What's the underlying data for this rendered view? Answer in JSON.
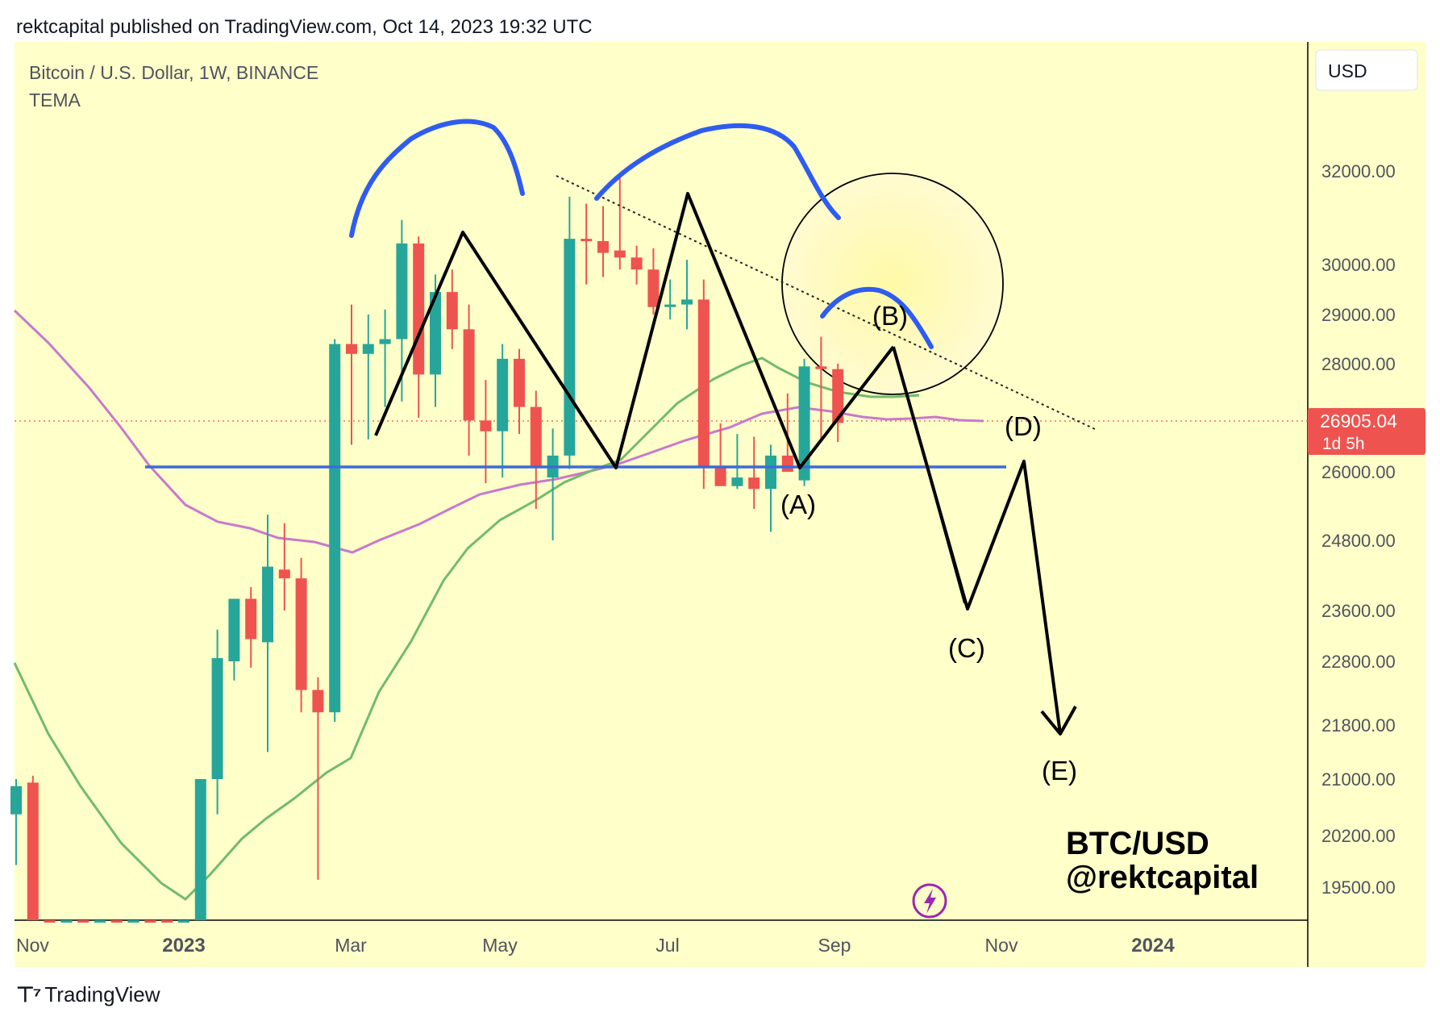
{
  "header": {
    "publish_line": "rektcapital published on TradingView.com, Oct 14, 2023 19:32 UTC"
  },
  "footer": {
    "brand": "TradingView",
    "logo_icon": "tradingview-logo-icon"
  },
  "chart_data": {
    "type": "candlestick",
    "title": "Bitcoin / U.S. Dollar, 1W, BINANCE",
    "subtitle": "TEMA",
    "currency_label": "USD",
    "colors": {
      "up": "#26a69a",
      "down": "#ef5350",
      "background": "#ffffc9",
      "ma_purple": "#c879cc",
      "ma_green": "#72bb6c",
      "support": "#3c6bd9",
      "arc": "#2f5cf0"
    },
    "y_ticks": [
      "32000.00",
      "30000.00",
      "29000.00",
      "28000.00",
      "26000.00",
      "24800.00",
      "23600.00",
      "22800.00",
      "21800.00",
      "21000.00",
      "20200.00",
      "19500.00"
    ],
    "y_tick_values": [
      32000,
      30000,
      29000,
      28000,
      26000,
      24800,
      23600,
      22800,
      21800,
      21000,
      20200,
      19500
    ],
    "x_ticks": [
      {
        "label": "Nov",
        "bold": false
      },
      {
        "label": "2023",
        "bold": true
      },
      {
        "label": "Mar",
        "bold": false
      },
      {
        "label": "May",
        "bold": false
      },
      {
        "label": "Jul",
        "bold": false
      },
      {
        "label": "Sep",
        "bold": false
      },
      {
        "label": "Nov",
        "bold": false
      },
      {
        "label": "2024",
        "bold": true
      }
    ],
    "last_price": {
      "value": "26905.04",
      "countdown": "1d 5h"
    },
    "candles": [
      {
        "o": 20500,
        "h": 21000,
        "l": 19800,
        "c": 20900
      },
      {
        "o": 20950,
        "h": 21050,
        "l": 16000,
        "c": 16200
      },
      {
        "o": 16600,
        "h": 16800,
        "l": 16100,
        "c": 16450
      },
      {
        "o": 16450,
        "h": 16700,
        "l": 16300,
        "c": 16550
      },
      {
        "o": 16550,
        "h": 16950,
        "l": 16150,
        "c": 16400
      },
      {
        "o": 16400,
        "h": 16800,
        "l": 16250,
        "c": 16600
      },
      {
        "o": 16700,
        "h": 16950,
        "l": 16450,
        "c": 16550
      },
      {
        "o": 16550,
        "h": 16900,
        "l": 16300,
        "c": 16850
      },
      {
        "o": 16850,
        "h": 16950,
        "l": 16400,
        "c": 16600
      },
      {
        "o": 16600,
        "h": 16850,
        "l": 16450,
        "c": 16500
      },
      {
        "o": 16500,
        "h": 17100,
        "l": 16400,
        "c": 16650
      },
      {
        "o": 16650,
        "h": 21000,
        "l": 16600,
        "c": 21000
      },
      {
        "o": 21000,
        "h": 23300,
        "l": 20500,
        "c": 22850
      },
      {
        "o": 22800,
        "h": 23800,
        "l": 22500,
        "c": 23800
      },
      {
        "o": 23800,
        "h": 24000,
        "l": 22700,
        "c": 23150
      },
      {
        "o": 23100,
        "h": 25250,
        "l": 21400,
        "c": 24350
      },
      {
        "o": 24300,
        "h": 25100,
        "l": 23600,
        "c": 24150
      },
      {
        "o": 24150,
        "h": 24500,
        "l": 22000,
        "c": 22350
      },
      {
        "o": 22350,
        "h": 22550,
        "l": 19600,
        "c": 22000
      },
      {
        "o": 22000,
        "h": 28500,
        "l": 21850,
        "c": 28400
      },
      {
        "o": 28400,
        "h": 29200,
        "l": 26500,
        "c": 28200
      },
      {
        "o": 28200,
        "h": 29000,
        "l": 26600,
        "c": 28400
      },
      {
        "o": 28400,
        "h": 29100,
        "l": 27200,
        "c": 28500
      },
      {
        "o": 28500,
        "h": 30950,
        "l": 27300,
        "c": 30450
      },
      {
        "o": 30450,
        "h": 30600,
        "l": 27000,
        "c": 27800
      },
      {
        "o": 27800,
        "h": 29800,
        "l": 27200,
        "c": 29450
      },
      {
        "o": 29450,
        "h": 29900,
        "l": 28300,
        "c": 28700
      },
      {
        "o": 28700,
        "h": 29200,
        "l": 26300,
        "c": 26950
      },
      {
        "o": 26950,
        "h": 27700,
        "l": 25800,
        "c": 26750
      },
      {
        "o": 26750,
        "h": 28400,
        "l": 25900,
        "c": 28100
      },
      {
        "o": 28100,
        "h": 28300,
        "l": 26700,
        "c": 27200
      },
      {
        "o": 27200,
        "h": 27500,
        "l": 25350,
        "c": 26100
      },
      {
        "o": 25900,
        "h": 26800,
        "l": 24800,
        "c": 26300
      },
      {
        "o": 26300,
        "h": 31450,
        "l": 26050,
        "c": 30550
      },
      {
        "o": 30550,
        "h": 31300,
        "l": 29600,
        "c": 30500
      },
      {
        "o": 30500,
        "h": 31250,
        "l": 29750,
        "c": 30250
      },
      {
        "o": 30300,
        "h": 31850,
        "l": 29900,
        "c": 30150
      },
      {
        "o": 30150,
        "h": 30400,
        "l": 29600,
        "c": 29900
      },
      {
        "o": 29900,
        "h": 30350,
        "l": 29000,
        "c": 29150
      },
      {
        "o": 29150,
        "h": 29700,
        "l": 28900,
        "c": 29200
      },
      {
        "o": 29200,
        "h": 30100,
        "l": 28700,
        "c": 29300
      },
      {
        "o": 29300,
        "h": 29700,
        "l": 25700,
        "c": 26100
      },
      {
        "o": 26100,
        "h": 26900,
        "l": 25800,
        "c": 25750
      },
      {
        "o": 25750,
        "h": 26700,
        "l": 25700,
        "c": 25900
      },
      {
        "o": 25900,
        "h": 26650,
        "l": 25350,
        "c": 25700
      },
      {
        "o": 25700,
        "h": 26500,
        "l": 24950,
        "c": 26300
      },
      {
        "o": 26300,
        "h": 27450,
        "l": 26000,
        "c": 26000
      },
      {
        "o": 25850,
        "h": 28100,
        "l": 25750,
        "c": 27950
      },
      {
        "o": 27950,
        "h": 28550,
        "l": 26600,
        "c": 27900
      },
      {
        "o": 27900,
        "h": 28000,
        "l": 26550,
        "c": 26905
      }
    ],
    "wave_labels": [
      "(A)",
      "(B)",
      "(C)",
      "(D)",
      "(E)"
    ],
    "watermark_lines": [
      "BTC/USD",
      "@rektcapital"
    ]
  }
}
